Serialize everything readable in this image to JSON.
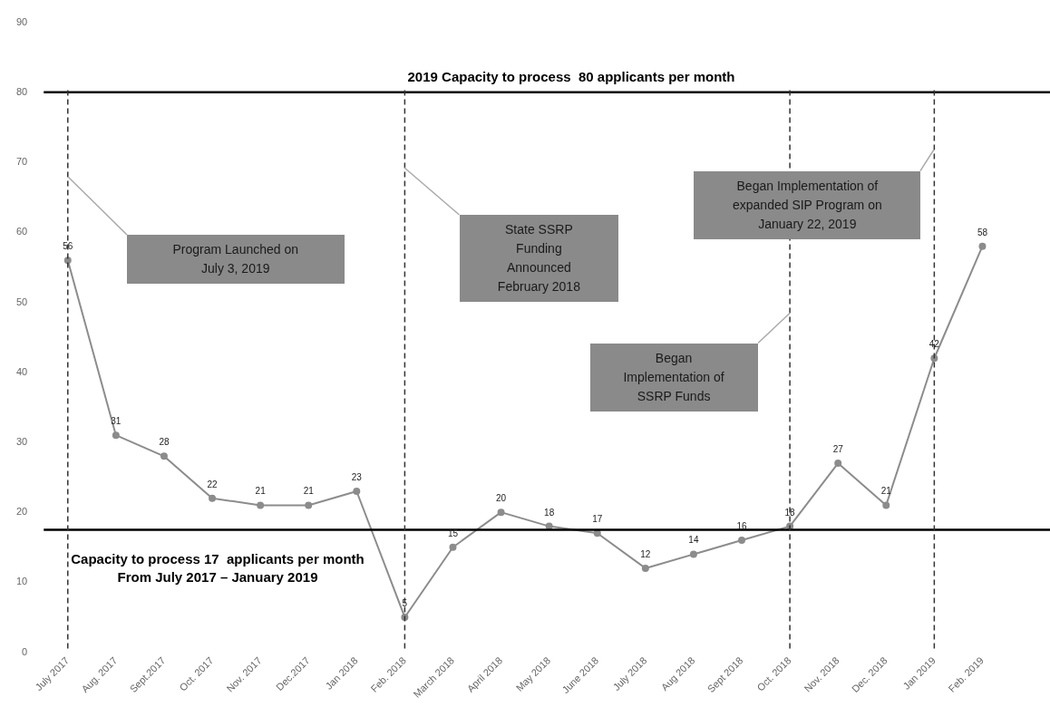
{
  "chart_data": {
    "type": "line",
    "categories": [
      "July 2017",
      "Aug. 2017",
      "Sept.2017",
      "Oct. 2017",
      "Nov. 2017",
      "Dec.2017",
      "Jan 2018",
      "Feb. 2018",
      "March 2018",
      "April 2018",
      "May 2018",
      "June 2018",
      "July 2018",
      "Aug 2018",
      "Sept 2018",
      "Oct. 2018",
      "Nov. 2018",
      "Dec. 2018",
      "Jan 2019",
      "Feb. 2019"
    ],
    "series": [
      {
        "color": "#8c8c8c",
        "values": [
          56,
          31,
          28,
          22,
          21,
          21,
          23,
          5,
          15,
          20,
          18,
          17,
          12,
          14,
          16,
          18,
          27,
          21,
          42,
          58
        ]
      }
    ],
    "ylim": [
      0,
      90
    ],
    "yticks": [
      0,
      10,
      20,
      30,
      40,
      50,
      60,
      70,
      80,
      90
    ],
    "grid": false,
    "legend": false,
    "marker": "circle",
    "line_style": "solid",
    "data_labels": true,
    "ref_lines": [
      {
        "axis": "y",
        "value": 80,
        "label": "2019 Capacity to process  80 applicants per month",
        "color": "#000000",
        "line_style": "solid"
      },
      {
        "axis": "y",
        "value": 17.5,
        "label": "Capacity to process 17  applicants per month\nFrom July 2017 – January 2019",
        "color": "#000000",
        "line_style": "solid"
      },
      {
        "axis": "x",
        "value": "July 2017",
        "color": "#333333",
        "line_style": "dashed"
      },
      {
        "axis": "x",
        "value": "Feb. 2018",
        "color": "#333333",
        "line_style": "dashed"
      },
      {
        "axis": "x",
        "value": "Oct. 2018",
        "color": "#333333",
        "line_style": "dashed"
      },
      {
        "axis": "x",
        "value": "Jan 2019",
        "color": "#333333",
        "line_style": "dashed"
      }
    ],
    "annotations": [
      "Program Launched on\nJuly 3, 2019",
      "State SSRP\nFunding\nAnnounced\nFebruary 2018",
      "Began\nImplementation of\nSSRP Funds",
      "Began Implementation of\nexpanded SIP Program on\nJanuary 22, 2019"
    ]
  }
}
